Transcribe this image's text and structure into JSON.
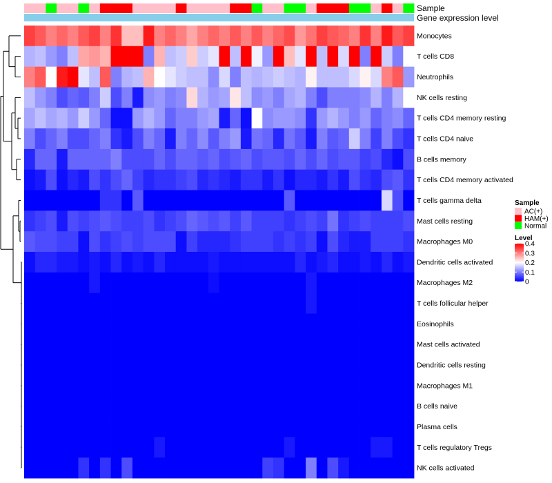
{
  "chart_data": {
    "type": "heatmap",
    "annotations": {
      "sample_label": "Sample",
      "gene_label": "Gene expression level"
    },
    "sample_legend": {
      "title": "Sample",
      "items": [
        {
          "name": "AC(+)",
          "color": "#FFC0CB"
        },
        {
          "name": "HAM(+)",
          "color": "#FF0000"
        },
        {
          "name": "Normal",
          "color": "#00FF00"
        }
      ]
    },
    "level_legend": {
      "title": "Level",
      "ticks": [
        "0.4",
        "0.3",
        "0.2",
        "0.1",
        "0"
      ],
      "range": [
        0,
        0.4
      ],
      "colors": {
        "low": "#0000FF",
        "mid": "#FFFFFF",
        "high": "#FF0000"
      }
    },
    "sample_groups": [
      "AC(+)",
      "AC(+)",
      "Normal",
      "AC(+)",
      "AC(+)",
      "Normal",
      "AC(+)",
      "HAM(+)",
      "HAM(+)",
      "HAM(+)",
      "AC(+)",
      "AC(+)",
      "AC(+)",
      "AC(+)",
      "HAM(+)",
      "AC(+)",
      "AC(+)",
      "AC(+)",
      "AC(+)",
      "HAM(+)",
      "HAM(+)",
      "Normal",
      "AC(+)",
      "AC(+)",
      "Normal",
      "Normal",
      "AC(+)",
      "HAM(+)",
      "HAM(+)",
      "HAM(+)",
      "Normal",
      "Normal",
      "AC(+)",
      "HAM(+)",
      "AC(+)",
      "Normal"
    ],
    "rows": [
      {
        "name": "Monocytes",
        "values": [
          0.35,
          0.33,
          0.3,
          0.32,
          0.3,
          0.33,
          0.35,
          0.3,
          0.36,
          0.25,
          0.25,
          0.38,
          0.3,
          0.32,
          0.3,
          0.27,
          0.3,
          0.32,
          0.3,
          0.33,
          0.3,
          0.33,
          0.3,
          0.32,
          0.34,
          0.28,
          0.31,
          0.35,
          0.33,
          0.32,
          0.3,
          0.36,
          0.3,
          0.38,
          0.33,
          0.35
        ]
      },
      {
        "name": "T cells CD8",
        "values": [
          0.14,
          0.15,
          0.12,
          0.1,
          0.15,
          0.27,
          0.28,
          0.26,
          0.4,
          0.4,
          0.4,
          0.1,
          0.26,
          0.15,
          0.16,
          0.24,
          0.16,
          0.18,
          0.4,
          0.15,
          0.4,
          0.19,
          0.12,
          0.4,
          0.25,
          0.18,
          0.4,
          0.15,
          0.4,
          0.17,
          0.4,
          0.1,
          0.4,
          0.16,
          0.1,
          0.2
        ]
      },
      {
        "name": "Neutrophils",
        "values": [
          0.3,
          0.33,
          0.2,
          0.38,
          0.4,
          0.18,
          0.15,
          0.33,
          0.1,
          0.14,
          0.15,
          0.26,
          0.2,
          0.18,
          0.16,
          0.15,
          0.15,
          0.11,
          0.17,
          0.1,
          0.15,
          0.14,
          0.15,
          0.16,
          0.15,
          0.14,
          0.21,
          0.15,
          0.15,
          0.15,
          0.17,
          0.21,
          0.17,
          0.3,
          0.33,
          0.12
        ]
      },
      {
        "name": "NK cells resting",
        "values": [
          0.15,
          0.12,
          0.1,
          0.06,
          0.08,
          0.07,
          0.1,
          0.16,
          0.06,
          0.1,
          0.02,
          0.11,
          0.12,
          0.1,
          0.11,
          0.23,
          0.14,
          0.12,
          0.13,
          0.22,
          0.15,
          0.11,
          0.12,
          0.1,
          0.13,
          0.14,
          0.1,
          0.06,
          0.1,
          0.1,
          0.1,
          0.11,
          0.14,
          0.1,
          0.14,
          0.2
        ]
      },
      {
        "name": "T cells CD4 memory resting",
        "values": [
          0.13,
          0.15,
          0.13,
          0.14,
          0.12,
          0.16,
          0.12,
          0.08,
          0.01,
          0.01,
          0.12,
          0.14,
          0.12,
          0.08,
          0.1,
          0.1,
          0.12,
          0.13,
          0.02,
          0.08,
          0.01,
          0.2,
          0.11,
          0.12,
          0.12,
          0.11,
          0.04,
          0.12,
          0.14,
          0.12,
          0.1,
          0.12,
          0.08,
          0.1,
          0.11,
          0.08
        ]
      },
      {
        "name": "T cells CD4 naive",
        "values": [
          0.1,
          0.06,
          0.08,
          0.1,
          0.06,
          0.06,
          0.08,
          0.1,
          0.04,
          0.02,
          0.06,
          0.1,
          0.08,
          0.02,
          0.1,
          0.08,
          0.11,
          0.07,
          0.1,
          0.12,
          0.02,
          0.09,
          0.08,
          0.03,
          0.09,
          0.07,
          0.02,
          0.1,
          0.07,
          0.08,
          0.16,
          0.1,
          0.05,
          0.1,
          0.06,
          0.04
        ]
      },
      {
        "name": "B cells memory",
        "values": [
          0.03,
          0.08,
          0.08,
          0.02,
          0.08,
          0.08,
          0.08,
          0.08,
          0.1,
          0.06,
          0.06,
          0.06,
          0.08,
          0.06,
          0.08,
          0.08,
          0.07,
          0.08,
          0.06,
          0.07,
          0.08,
          0.06,
          0.07,
          0.07,
          0.06,
          0.08,
          0.06,
          0.08,
          0.06,
          0.07,
          0.07,
          0.05,
          0.06,
          0.03,
          0.01,
          0.06
        ]
      },
      {
        "name": "T cells CD4 memory activated",
        "values": [
          0.01,
          0.02,
          0.06,
          0.01,
          0.03,
          0.02,
          0.06,
          0.04,
          0.06,
          0.08,
          0.05,
          0.03,
          0.04,
          0.04,
          0.05,
          0.06,
          0.03,
          0.04,
          0.03,
          0.02,
          0.04,
          0.04,
          0.02,
          0.04,
          0.01,
          0.03,
          0.03,
          0.02,
          0.04,
          0.02,
          0.06,
          0.04,
          0.03,
          0.06,
          0.07,
          0.04
        ]
      },
      {
        "name": "T cells gamma delta",
        "values": [
          0.0,
          0.0,
          0.0,
          0.0,
          0.0,
          0.0,
          0.0,
          0.04,
          0.04,
          0.0,
          0.07,
          0.0,
          0.0,
          0.0,
          0.0,
          0.0,
          0.0,
          0.0,
          0.0,
          0.0,
          0.0,
          0.0,
          0.0,
          0.0,
          0.07,
          0.0,
          0.0,
          0.0,
          0.0,
          0.0,
          0.0,
          0.0,
          0.0,
          0.17,
          0.06,
          0.0
        ]
      },
      {
        "name": "Mast cells resting",
        "values": [
          0.04,
          0.05,
          0.06,
          0.02,
          0.06,
          0.05,
          0.06,
          0.07,
          0.06,
          0.05,
          0.05,
          0.06,
          0.04,
          0.05,
          0.06,
          0.08,
          0.07,
          0.06,
          0.07,
          0.05,
          0.07,
          0.05,
          0.05,
          0.05,
          0.04,
          0.05,
          0.06,
          0.05,
          0.09,
          0.04,
          0.05,
          0.06,
          0.05,
          0.05,
          0.05,
          0.06
        ]
      },
      {
        "name": "Macrophages M0",
        "values": [
          0.07,
          0.06,
          0.06,
          0.05,
          0.05,
          0.01,
          0.06,
          0.04,
          0.05,
          0.06,
          0.05,
          0.06,
          0.06,
          0.06,
          0.01,
          0.05,
          0.03,
          0.03,
          0.03,
          0.04,
          0.05,
          0.05,
          0.05,
          0.04,
          0.05,
          0.04,
          0.05,
          0.01,
          0.06,
          0.03,
          0.02,
          0.02,
          0.05,
          0.05,
          0.05,
          0.04
        ]
      },
      {
        "name": "Dendritic cells activated",
        "values": [
          0.01,
          0.03,
          0.03,
          0.02,
          0.02,
          0.01,
          0.02,
          0.01,
          0.03,
          0.01,
          0.02,
          0.01,
          0.03,
          0.01,
          0.01,
          0.01,
          0.01,
          0.02,
          0.01,
          0.01,
          0.01,
          0.01,
          0.01,
          0.01,
          0.01,
          0.03,
          0.01,
          0.02,
          0.03,
          0.01,
          0.01,
          0.02,
          0.01,
          0.03,
          0.01,
          0.02
        ]
      },
      {
        "name": "Macrophages M2",
        "values": [
          0.0,
          0.0,
          0.0,
          0.0,
          0.0,
          0.0,
          0.02,
          0.0,
          0.0,
          0.0,
          0.0,
          0.0,
          0.0,
          0.0,
          0.0,
          0.0,
          0.0,
          0.01,
          0.0,
          0.0,
          0.0,
          0.0,
          0.0,
          0.0,
          0.0,
          0.0,
          0.02,
          0.0,
          0.0,
          0.0,
          0.0,
          0.0,
          0.0,
          0.0,
          0.0,
          0.0
        ]
      },
      {
        "name": "T cells follicular helper",
        "values": [
          0.0,
          0.0,
          0.0,
          0.0,
          0.0,
          0.0,
          0.0,
          0.0,
          0.0,
          0.0,
          0.0,
          0.0,
          0.0,
          0.0,
          0.0,
          0.0,
          0.0,
          0.0,
          0.0,
          0.0,
          0.0,
          0.0,
          0.0,
          0.0,
          0.0,
          0.0,
          0.02,
          0.0,
          0.0,
          0.0,
          0.0,
          0.0,
          0.0,
          0.0,
          0.0,
          0.0
        ]
      },
      {
        "name": "Eosinophils",
        "values": [
          0.0,
          0.0,
          0.0,
          0.0,
          0.0,
          0.0,
          0.0,
          0.0,
          0.0,
          0.0,
          0.0,
          0.0,
          0.0,
          0.0,
          0.0,
          0.0,
          0.0,
          0.0,
          0.0,
          0.0,
          0.0,
          0.0,
          0.0,
          0.0,
          0.0,
          0.0,
          0.0,
          0.0,
          0.0,
          0.0,
          0.0,
          0.0,
          0.0,
          0.0,
          0.0,
          0.0
        ]
      },
      {
        "name": "Mast cells activated",
        "values": [
          0.0,
          0.0,
          0.0,
          0.0,
          0.0,
          0.0,
          0.0,
          0.0,
          0.0,
          0.0,
          0.0,
          0.0,
          0.0,
          0.0,
          0.0,
          0.0,
          0.0,
          0.0,
          0.0,
          0.0,
          0.0,
          0.0,
          0.0,
          0.0,
          0.0,
          0.0,
          0.0,
          0.0,
          0.0,
          0.0,
          0.0,
          0.0,
          0.0,
          0.0,
          0.0,
          0.0
        ]
      },
      {
        "name": "Dendritic cells resting",
        "values": [
          0.0,
          0.0,
          0.0,
          0.0,
          0.0,
          0.0,
          0.0,
          0.0,
          0.0,
          0.0,
          0.0,
          0.0,
          0.0,
          0.0,
          0.0,
          0.0,
          0.0,
          0.0,
          0.0,
          0.0,
          0.0,
          0.0,
          0.0,
          0.0,
          0.0,
          0.0,
          0.0,
          0.0,
          0.0,
          0.0,
          0.0,
          0.0,
          0.0,
          0.0,
          0.0,
          0.0
        ]
      },
      {
        "name": "Macrophages M1",
        "values": [
          0.0,
          0.0,
          0.0,
          0.0,
          0.0,
          0.0,
          0.0,
          0.0,
          0.0,
          0.0,
          0.0,
          0.0,
          0.0,
          0.0,
          0.0,
          0.0,
          0.0,
          0.0,
          0.0,
          0.0,
          0.0,
          0.0,
          0.0,
          0.0,
          0.0,
          0.0,
          0.0,
          0.0,
          0.0,
          0.0,
          0.0,
          0.0,
          0.0,
          0.0,
          0.0,
          0.0
        ]
      },
      {
        "name": "B cells naive",
        "values": [
          0.0,
          0.0,
          0.0,
          0.0,
          0.0,
          0.0,
          0.0,
          0.0,
          0.0,
          0.0,
          0.0,
          0.0,
          0.0,
          0.0,
          0.0,
          0.0,
          0.0,
          0.0,
          0.0,
          0.0,
          0.0,
          0.0,
          0.0,
          0.0,
          0.0,
          0.0,
          0.0,
          0.0,
          0.0,
          0.0,
          0.0,
          0.0,
          0.0,
          0.0,
          0.0,
          0.0
        ]
      },
      {
        "name": "Plasma cells",
        "values": [
          0.0,
          0.0,
          0.0,
          0.0,
          0.0,
          0.0,
          0.0,
          0.0,
          0.0,
          0.0,
          0.0,
          0.0,
          0.0,
          0.0,
          0.0,
          0.0,
          0.0,
          0.0,
          0.0,
          0.0,
          0.0,
          0.0,
          0.0,
          0.0,
          0.0,
          0.0,
          0.0,
          0.0,
          0.0,
          0.0,
          0.0,
          0.0,
          0.0,
          0.0,
          0.0,
          0.0
        ]
      },
      {
        "name": "T cells regulatory  Tregs",
        "values": [
          0.0,
          0.0,
          0.0,
          0.0,
          0.0,
          0.0,
          0.0,
          0.0,
          0.0,
          0.0,
          0.0,
          0.0,
          0.02,
          0.0,
          0.0,
          0.0,
          0.0,
          0.0,
          0.0,
          0.0,
          0.0,
          0.0,
          0.0,
          0.0,
          0.02,
          0.0,
          0.0,
          0.0,
          0.0,
          0.0,
          0.0,
          0.0,
          0.02,
          0.02,
          0.0,
          0.0
        ]
      },
      {
        "name": "NK cells activated",
        "values": [
          0.0,
          0.0,
          0.0,
          0.0,
          0.0,
          0.04,
          0.0,
          0.04,
          0.0,
          0.06,
          0.0,
          0.0,
          0.0,
          0.0,
          0.0,
          0.0,
          0.0,
          0.0,
          0.0,
          0.0,
          0.0,
          0.0,
          0.05,
          0.04,
          0.0,
          0.0,
          0.1,
          0.0,
          0.06,
          0.02,
          0.0,
          0.0,
          0.0,
          0.0,
          0.0,
          0.0
        ]
      }
    ]
  }
}
